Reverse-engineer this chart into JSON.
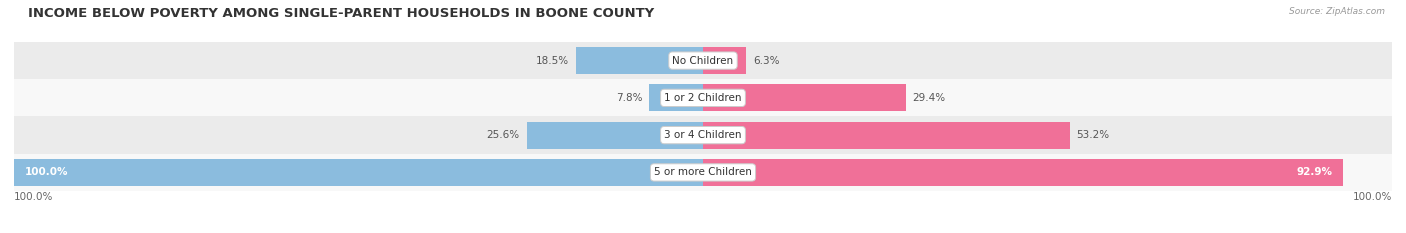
{
  "title": "INCOME BELOW POVERTY AMONG SINGLE-PARENT HOUSEHOLDS IN BOONE COUNTY",
  "source": "Source: ZipAtlas.com",
  "categories": [
    "No Children",
    "1 or 2 Children",
    "3 or 4 Children",
    "5 or more Children"
  ],
  "single_father": [
    18.5,
    7.8,
    25.6,
    100.0
  ],
  "single_mother": [
    6.3,
    29.4,
    53.2,
    92.9
  ],
  "bar_color_father": "#8BBCDE",
  "bar_color_mother": "#F07098",
  "bg_color_odd": "#EBEBEB",
  "bg_color_even": "#F8F8F8",
  "max_val": 100.0,
  "axis_label_left": "100.0%",
  "axis_label_right": "100.0%",
  "title_fontsize": 9.5,
  "label_fontsize": 7.5,
  "cat_fontsize": 7.5
}
